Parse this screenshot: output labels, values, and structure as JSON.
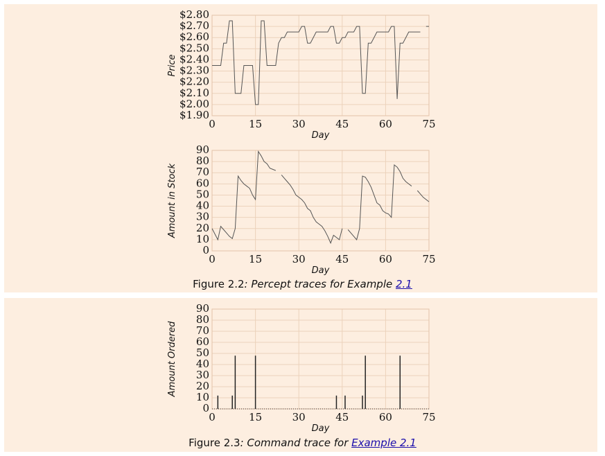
{
  "chart_data": [
    {
      "type": "line",
      "y_label": "Price",
      "x_label": "Day",
      "x": [
        0,
        1,
        2,
        3,
        4,
        5,
        6,
        7,
        8,
        9,
        10,
        11,
        12,
        13,
        14,
        15,
        16,
        17,
        18,
        19,
        20,
        21,
        22,
        23,
        24,
        25,
        26,
        27,
        28,
        29,
        30,
        31,
        32,
        33,
        34,
        35,
        36,
        37,
        38,
        39,
        40,
        41,
        42,
        43,
        44,
        45,
        46,
        47,
        48,
        49,
        50,
        51,
        52,
        53,
        54,
        55,
        56,
        57,
        58,
        59,
        60,
        61,
        62,
        63,
        64,
        65,
        66,
        67,
        68,
        69,
        70,
        71,
        72,
        73,
        74,
        75
      ],
      "series": [
        {
          "color": "#555555",
          "values": [
            2.35,
            2.35,
            2.35,
            2.35,
            2.55,
            2.55,
            2.75,
            2.75,
            2.1,
            2.1,
            2.1,
            2.35,
            2.35,
            2.35,
            2.35,
            2.0,
            2.0,
            2.75,
            2.75,
            2.35,
            2.35,
            2.35,
            2.35,
            2.55,
            2.6,
            2.6,
            2.65,
            2.65,
            2.65,
            2.65,
            2.65,
            2.7,
            2.7,
            2.55,
            2.55,
            2.6,
            2.65,
            2.65,
            2.65,
            2.65,
            2.65,
            2.7,
            2.7,
            2.55,
            2.55,
            2.6,
            2.6,
            2.65,
            2.65,
            2.65,
            2.7,
            2.7,
            2.1,
            2.1,
            2.55,
            2.55,
            2.6,
            2.65,
            2.65,
            2.65,
            2.65,
            2.65,
            2.7,
            2.7,
            2.05,
            2.55,
            2.55,
            2.6,
            2.65,
            2.65,
            2.65,
            2.65,
            2.65,
            null,
            2.7,
            2.7
          ]
        }
      ],
      "xlim": [
        0,
        75
      ],
      "xticks": [
        0,
        15,
        30,
        45,
        60,
        75
      ],
      "ylim": [
        1.9,
        2.8
      ],
      "yticks": [
        {
          "value": 1.9,
          "label": "$1.90"
        },
        {
          "value": 2.0,
          "label": "$2.00"
        },
        {
          "value": 2.1,
          "label": "$2.10"
        },
        {
          "value": 2.2,
          "label": "$2.20"
        },
        {
          "value": 2.3,
          "label": "$2.30"
        },
        {
          "value": 2.4,
          "label": "$2.40"
        },
        {
          "value": 2.5,
          "label": "$2.50"
        },
        {
          "value": 2.6,
          "label": "$2.60"
        },
        {
          "value": 2.7,
          "label": "$2.70"
        },
        {
          "value": 2.8,
          "label": "$2.80"
        }
      ],
      "grid": true
    },
    {
      "type": "line",
      "y_label": "Amount in Stock",
      "x_label": "Day",
      "x": [
        0,
        1,
        2,
        3,
        4,
        5,
        6,
        7,
        8,
        9,
        10,
        11,
        12,
        13,
        14,
        15,
        16,
        17,
        18,
        19,
        20,
        21,
        22,
        23,
        24,
        25,
        26,
        27,
        28,
        29,
        30,
        31,
        32,
        33,
        34,
        35,
        36,
        37,
        38,
        39,
        40,
        41,
        42,
        43,
        44,
        45,
        46,
        47,
        48,
        49,
        50,
        51,
        52,
        53,
        54,
        55,
        56,
        57,
        58,
        59,
        60,
        61,
        62,
        63,
        64,
        65,
        66,
        67,
        68,
        69,
        70,
        71,
        72,
        73,
        74,
        75
      ],
      "series": [
        {
          "color": "#555555",
          "values": [
            20,
            15,
            10,
            22,
            19,
            16,
            13,
            11,
            20,
            67,
            63,
            60,
            58,
            56,
            50,
            46,
            89,
            85,
            80,
            78,
            74,
            73,
            72,
            null,
            68,
            65,
            62,
            59,
            55,
            50,
            48,
            46,
            43,
            38,
            36,
            30,
            26,
            24,
            22,
            18,
            13,
            7,
            14,
            12,
            10,
            20,
            null,
            19,
            16,
            13,
            10,
            20,
            67,
            66,
            62,
            57,
            50,
            43,
            41,
            36,
            34,
            33,
            30,
            77,
            75,
            71,
            65,
            62,
            60,
            58,
            null,
            54,
            51,
            48,
            46,
            44
          ]
        }
      ],
      "xlim": [
        0,
        75
      ],
      "xticks": [
        0,
        15,
        30,
        45,
        60,
        75
      ],
      "ylim": [
        0,
        90
      ],
      "yticks": [
        0,
        10,
        20,
        30,
        40,
        50,
        60,
        70,
        80,
        90
      ],
      "grid": true
    },
    {
      "type": "bar",
      "y_label": "Amount Ordered",
      "x_label": "Day",
      "x": [
        2,
        7,
        8,
        15,
        43,
        46,
        52,
        53,
        65
      ],
      "series": [
        {
          "color": "#222222",
          "values": [
            12,
            12,
            48,
            48,
            12,
            12,
            12,
            48,
            48
          ]
        }
      ],
      "xlim": [
        0,
        75
      ],
      "xticks": [
        0,
        15,
        30,
        45,
        60,
        75
      ],
      "ylim": [
        0,
        90
      ],
      "yticks": [
        0,
        10,
        20,
        30,
        40,
        50,
        60,
        70,
        80,
        90
      ],
      "grid": true
    }
  ],
  "captions": [
    {
      "figure": "Figure 2.2",
      "text": ": Percept traces for Example ",
      "link": "2.1"
    },
    {
      "figure": "Figure 2.3",
      "text": ": Command trace for ",
      "link": "Example 2.1"
    }
  ]
}
